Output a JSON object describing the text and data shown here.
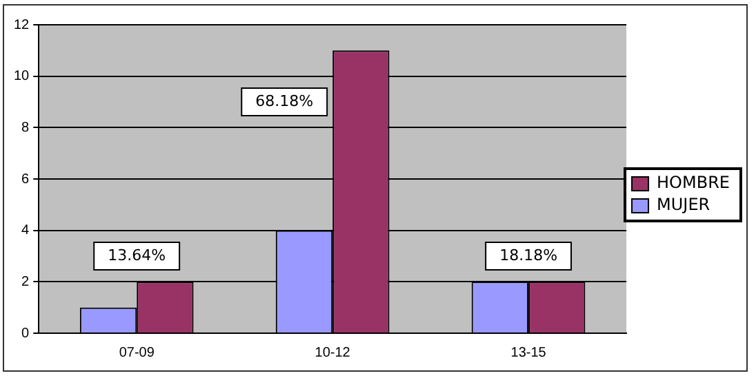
{
  "chart_data": {
    "type": "bar",
    "categories": [
      "07-09",
      "10-12",
      "13-15"
    ],
    "series": [
      {
        "name": "MUJER",
        "color": "#9999ff",
        "values": [
          1,
          4,
          2
        ]
      },
      {
        "name": "HOMBRE",
        "color": "#993366",
        "values": [
          2,
          11,
          2
        ]
      }
    ],
    "ylim": [
      0,
      12
    ],
    "yticks": [
      0,
      2,
      4,
      6,
      8,
      10,
      12
    ],
    "grid": "y",
    "legend": "right",
    "annotations": [
      "13.64%",
      "68.18%",
      "18.18%"
    ]
  }
}
